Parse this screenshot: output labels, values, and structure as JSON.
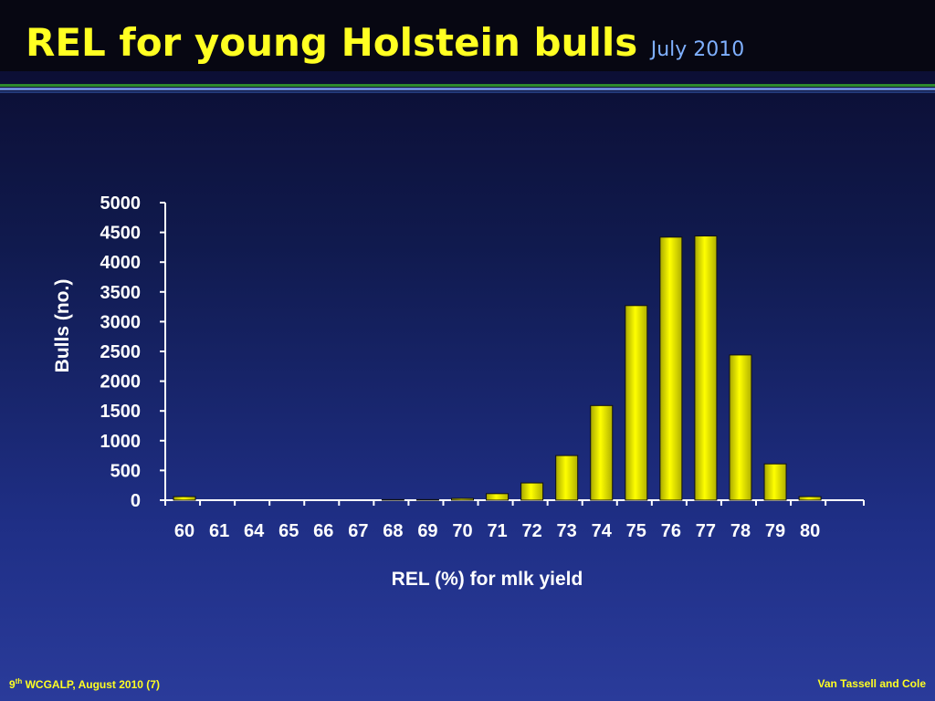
{
  "slide": {
    "title": "REL for young Holstein bulls",
    "subtitle": "July 2010",
    "footer_left_num": "9",
    "footer_left_sup": "th",
    "footer_left_rest": " WCGALP, August 2010 (7)",
    "footer_right": "Van Tassell and Cole"
  },
  "colors": {
    "title": "#ffff22",
    "subtitle": "#7fb0ff",
    "bar_fill": "#ffff00",
    "bar_edge": "#111111",
    "axis": "#ffffff",
    "text": "#ffffff"
  },
  "chart_data": {
    "type": "bar",
    "categories": [
      "60",
      "61",
      "64",
      "65",
      "66",
      "67",
      "68",
      "69",
      "70",
      "71",
      "72",
      "73",
      "74",
      "75",
      "76",
      "77",
      "78",
      "79",
      "80"
    ],
    "values": [
      60,
      0,
      0,
      0,
      0,
      0,
      10,
      10,
      30,
      110,
      290,
      750,
      1590,
      3270,
      4420,
      4440,
      2440,
      610,
      60
    ],
    "xlabel": "REL (%) for mlk yield",
    "ylabel": "Bulls (no.)",
    "ylim": [
      0,
      5000
    ],
    "yticks": [
      "0",
      "500",
      "1000",
      "1500",
      "2000",
      "2500",
      "3000",
      "3500",
      "4000",
      "4500",
      "5000"
    ],
    "grid": false,
    "legend": "none"
  }
}
